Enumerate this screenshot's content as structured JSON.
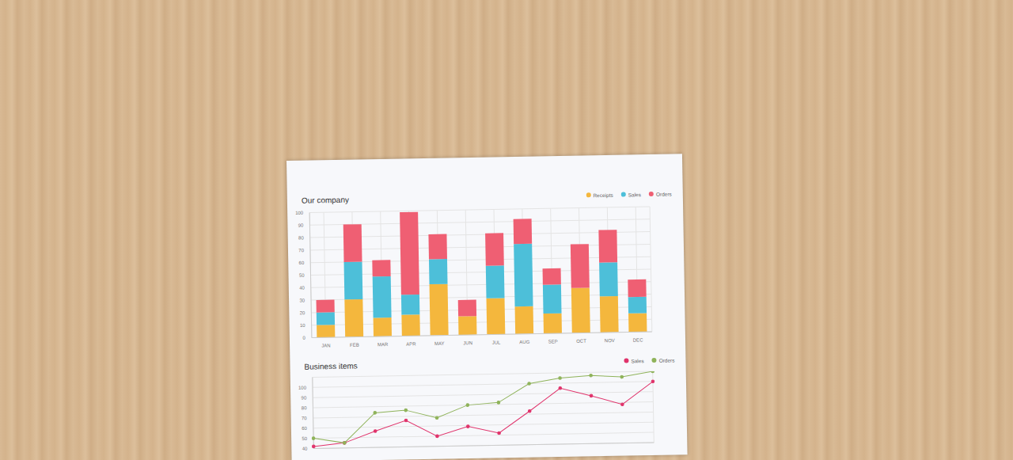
{
  "chart_data": [
    {
      "type": "bar",
      "title": "Our company",
      "stacked": true,
      "legend": "top-right",
      "grid": true,
      "categories": [
        "JAN",
        "FEB",
        "MAR",
        "APR",
        "MAY",
        "JUN",
        "JUL",
        "AUG",
        "SEP",
        "OCT",
        "NOV",
        "DEC"
      ],
      "series": [
        {
          "name": "Receipts",
          "color": "#f4b73d",
          "values": [
            10,
            30,
            15,
            17,
            41,
            15,
            29,
            22,
            16,
            36,
            29,
            15
          ]
        },
        {
          "name": "Sales",
          "color": "#4dbfd9",
          "values": [
            10,
            30,
            33,
            16,
            20,
            0,
            26,
            50,
            23,
            0,
            27,
            13
          ]
        },
        {
          "name": "Orders",
          "color": "#ef5f73",
          "values": [
            10,
            30,
            13,
            66,
            20,
            13,
            26,
            20,
            13,
            35,
            26,
            14
          ]
        }
      ],
      "ylim": [
        0,
        100
      ],
      "yticks": [
        0,
        10,
        20,
        30,
        40,
        50,
        60,
        70,
        80,
        90,
        100
      ]
    },
    {
      "type": "line",
      "title": "Business items",
      "legend": "top-right",
      "grid": true,
      "tick_labels": "y",
      "categories": [
        null,
        null,
        null,
        null,
        null,
        null,
        null,
        null,
        null,
        null,
        null,
        null
      ],
      "series": [
        {
          "name": "Sales",
          "color": "#e0336b",
          "marker": "circle",
          "values": [
            42,
            45,
            56,
            66,
            50,
            59,
            52,
            73,
            95,
            87,
            78,
            100
          ]
        },
        {
          "name": "Orders",
          "color": "#8fb35a",
          "marker": "circle",
          "values": [
            50,
            45,
            74,
            76,
            68,
            80,
            82,
            100,
            105,
            107,
            105,
            110
          ]
        }
      ],
      "ylim": [
        40,
        110
      ],
      "yticks": [
        40,
        50,
        60,
        70,
        80,
        90,
        100
      ]
    }
  ]
}
